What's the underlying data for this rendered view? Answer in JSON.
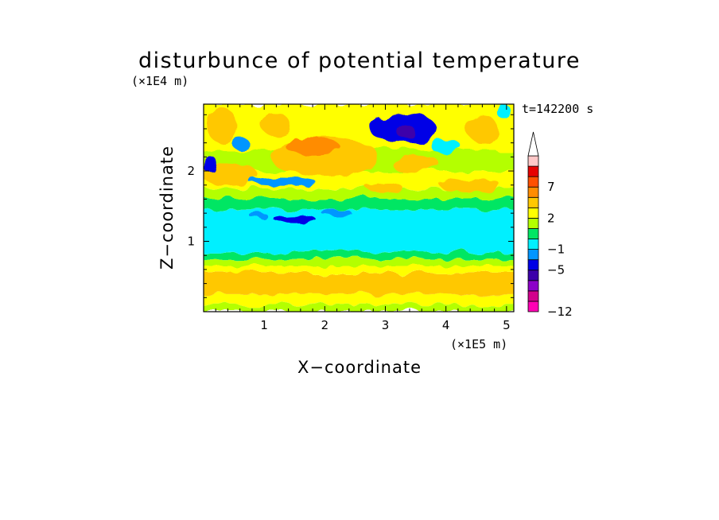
{
  "chart_data": {
    "type": "heatmap",
    "title": "disturbunce of potential temperature",
    "xlabel": "X−coordinate",
    "ylabel": "Z−coordinate",
    "x_unit": "(×1E5 m)",
    "y_unit": "(×1E4 m)",
    "time_label": "t=142200 s",
    "xlim": [
      0,
      5.12
    ],
    "ylim": [
      0,
      2.95
    ],
    "x_ticks": [
      {
        "value": 1,
        "label": "1"
      },
      {
        "value": 2,
        "label": "2"
      },
      {
        "value": 3,
        "label": "3"
      },
      {
        "value": 4,
        "label": "4"
      },
      {
        "value": 5,
        "label": "5"
      }
    ],
    "y_ticks": [
      {
        "value": 1,
        "label": "1"
      },
      {
        "value": 2,
        "label": "2"
      }
    ],
    "colorbar": {
      "levels": [
        -12,
        -10,
        -8,
        -6,
        -5,
        -3,
        -1,
        0,
        1,
        2,
        3,
        5,
        7,
        9,
        11
      ],
      "labels": [
        {
          "value": -12,
          "label": "−12"
        },
        {
          "value": -5,
          "label": "−5"
        },
        {
          "value": -1,
          "label": "−1"
        },
        {
          "value": 2,
          "label": "2"
        },
        {
          "value": 7,
          "label": "7"
        }
      ],
      "colors": [
        "#ff00b4",
        "#d2008c",
        "#8c00c8",
        "#3c00aa",
        "#0000e6",
        "#0096ff",
        "#00f0ff",
        "#00e664",
        "#b4ff00",
        "#ffff00",
        "#ffc800",
        "#ff8c00",
        "#ff5000",
        "#e60000",
        "#ffc8c8"
      ],
      "extend": "max",
      "extend_color": "#ffffff"
    },
    "bands": [
      {
        "z": [
          0.0,
          0.1
        ],
        "value": 1.5
      },
      {
        "z": [
          0.1,
          0.25
        ],
        "value": 2.5
      },
      {
        "z": [
          0.25,
          0.55
        ],
        "value": 3.5
      },
      {
        "z": [
          0.55,
          0.65
        ],
        "value": 2.5
      },
      {
        "z": [
          0.65,
          0.75
        ],
        "value": 1.5
      },
      {
        "z": [
          0.75,
          0.85
        ],
        "value": 0.5
      },
      {
        "z": [
          0.85,
          1.45
        ],
        "value": -0.5
      },
      {
        "z": [
          1.45,
          1.6
        ],
        "value": 0.5
      },
      {
        "z": [
          1.6,
          1.75
        ],
        "value": 1.5
      },
      {
        "z": [
          1.75,
          2.0
        ],
        "value": 2.5
      },
      {
        "z": [
          2.0,
          2.3
        ],
        "value": 1.5
      },
      {
        "z": [
          2.3,
          2.95
        ],
        "value": 2.5
      }
    ],
    "features": [
      {
        "x": 0.6,
        "z": 0.45,
        "rx": 0.35,
        "rz": 0.12,
        "value": 4.0
      },
      {
        "x": 2.7,
        "z": 0.42,
        "rx": 0.45,
        "rz": 0.12,
        "value": 4.0
      },
      {
        "x": 1.5,
        "z": 1.32,
        "rx": 0.35,
        "rz": 0.05,
        "value": -4.0
      },
      {
        "x": 0.9,
        "z": 1.37,
        "rx": 0.15,
        "rz": 0.04,
        "value": -2.0
      },
      {
        "x": 0.4,
        "z": 1.95,
        "rx": 0.5,
        "rz": 0.15,
        "value": 4.0
      },
      {
        "x": 2.0,
        "z": 2.2,
        "rx": 0.9,
        "rz": 0.28,
        "value": 4.0
      },
      {
        "x": 1.8,
        "z": 2.35,
        "rx": 0.45,
        "rz": 0.12,
        "value": 6.0
      },
      {
        "x": 0.3,
        "z": 2.65,
        "rx": 0.25,
        "rz": 0.25,
        "value": 4.0
      },
      {
        "x": 0.6,
        "z": 2.4,
        "rx": 0.15,
        "rz": 0.08,
        "value": -2.0
      },
      {
        "x": 0.1,
        "z": 2.1,
        "rx": 0.12,
        "rz": 0.12,
        "value": -4.0
      },
      {
        "x": 1.2,
        "z": 2.65,
        "rx": 0.25,
        "rz": 0.15,
        "value": 4.0
      },
      {
        "x": 1.3,
        "z": 1.85,
        "rx": 0.55,
        "rz": 0.06,
        "value": -2.0
      },
      {
        "x": 3.3,
        "z": 2.6,
        "rx": 0.55,
        "rz": 0.22,
        "value": -3.5
      },
      {
        "x": 3.35,
        "z": 2.55,
        "rx": 0.15,
        "rz": 0.1,
        "value": -6.0
      },
      {
        "x": 3.5,
        "z": 2.1,
        "rx": 0.4,
        "rz": 0.12,
        "value": 4.0
      },
      {
        "x": 4.0,
        "z": 2.35,
        "rx": 0.25,
        "rz": 0.1,
        "value": -0.5
      },
      {
        "x": 4.6,
        "z": 2.6,
        "rx": 0.25,
        "rz": 0.2,
        "value": 4.0
      },
      {
        "x": 4.4,
        "z": 1.8,
        "rx": 0.5,
        "rz": 0.1,
        "value": 4.0
      },
      {
        "x": 4.95,
        "z": 2.85,
        "rx": 0.12,
        "rz": 0.1,
        "value": -0.5
      },
      {
        "x": 3.0,
        "z": 1.75,
        "rx": 0.3,
        "rz": 0.08,
        "value": 4.0
      },
      {
        "x": 2.2,
        "z": 1.4,
        "rx": 0.25,
        "rz": 0.05,
        "value": -2.0
      }
    ]
  }
}
